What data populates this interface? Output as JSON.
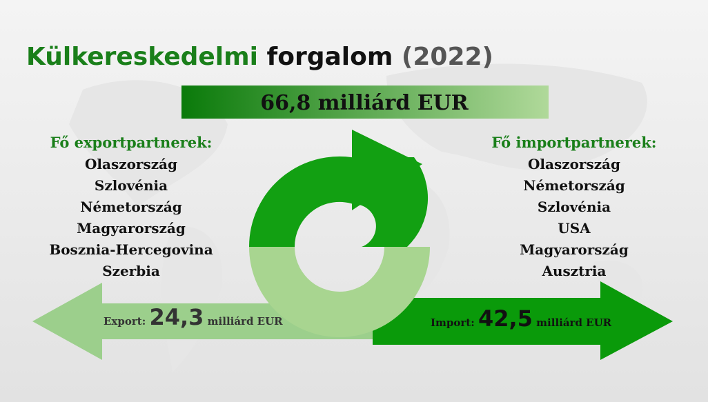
{
  "title": {
    "part1": "Külkereskedelmi",
    "part2": "forgalom",
    "part3": "(2022)"
  },
  "total": "66,8 milliárd EUR",
  "export_partners": {
    "heading": "Fő exportpartnerek:",
    "items": [
      "Olaszország",
      "Szlovénia",
      "Németország",
      "Magyarország",
      "Bosznia-Hercegovina",
      "Szerbia"
    ]
  },
  "import_partners": {
    "heading": "Fő importpartnerek:",
    "items": [
      "Olaszország",
      "Németország",
      "Szlovénia",
      "USA",
      "Magyarország",
      "Ausztria"
    ]
  },
  "export": {
    "label": "Export:",
    "amount": "24,3",
    "unit": "milliárd EUR"
  },
  "import": {
    "label": "Import:",
    "amount": "42,5",
    "unit": "milliárd EUR"
  }
}
